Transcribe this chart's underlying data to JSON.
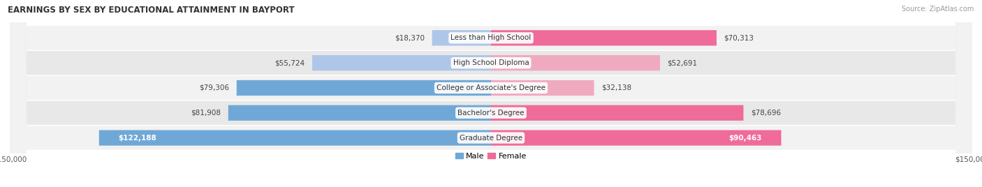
{
  "title": "EARNINGS BY SEX BY EDUCATIONAL ATTAINMENT IN BAYPORT",
  "source": "Source: ZipAtlas.com",
  "categories": [
    "Less than High School",
    "High School Diploma",
    "College or Associate's Degree",
    "Bachelor's Degree",
    "Graduate Degree"
  ],
  "male_values": [
    18370,
    55724,
    79306,
    81908,
    122188
  ],
  "female_values": [
    70313,
    52691,
    32138,
    78696,
    90463
  ],
  "male_color_light": "#aec6e8",
  "male_color_dark": "#6fa8d6",
  "female_color_light": "#f0aabf",
  "female_color_dark": "#ef6b99",
  "max_val": 150000,
  "bg_color": "#ffffff",
  "row_bg_odd": "#f2f2f2",
  "row_bg_even": "#e8e8e8",
  "title_fontsize": 8.5,
  "source_fontsize": 7,
  "label_fontsize": 7.5,
  "val_fontsize": 7.5,
  "legend_fontsize": 8
}
